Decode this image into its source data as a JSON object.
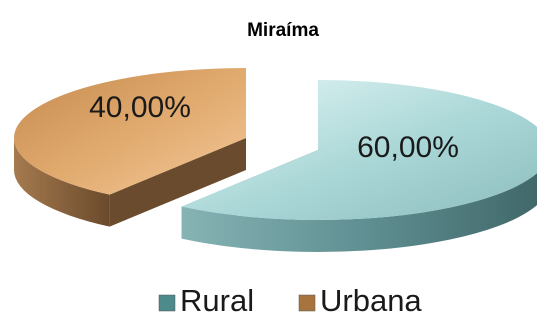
{
  "chart_data": {
    "type": "pie",
    "title": "Miraíma",
    "slices": [
      {
        "label": "Rural",
        "value": 60,
        "display": "60,00%",
        "color": "#a9d6d6",
        "side_color": "#5f8f92",
        "legend_color": "#4c8a8c"
      },
      {
        "label": "Urbana",
        "value": 40,
        "display": "40,00%",
        "color": "#e0a96d",
        "side_color": "#7a5535",
        "legend_color": "#a8743e"
      }
    ],
    "exploded": true,
    "three_d": true,
    "legend_position": "bottom"
  }
}
